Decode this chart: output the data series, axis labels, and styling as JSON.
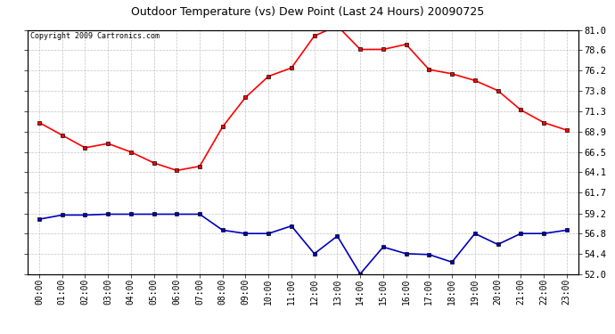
{
  "title": "Outdoor Temperature (vs) Dew Point (Last 24 Hours) 20090725",
  "copyright": "Copyright 2009 Cartronics.com",
  "x_labels": [
    "00:00",
    "01:00",
    "02:00",
    "03:00",
    "04:00",
    "05:00",
    "06:00",
    "07:00",
    "08:00",
    "09:00",
    "10:00",
    "11:00",
    "12:00",
    "13:00",
    "14:00",
    "15:00",
    "16:00",
    "17:00",
    "18:00",
    "19:00",
    "20:00",
    "21:00",
    "22:00",
    "23:00"
  ],
  "temp_data": [
    70.0,
    68.5,
    67.0,
    67.5,
    66.5,
    65.2,
    64.3,
    64.8,
    69.5,
    73.0,
    75.5,
    76.5,
    80.3,
    81.5,
    78.7,
    78.7,
    79.3,
    76.3,
    75.8,
    75.0,
    73.8,
    71.5,
    70.0,
    69.1
  ],
  "dew_data": [
    58.5,
    59.0,
    59.0,
    59.1,
    59.1,
    59.1,
    59.1,
    59.1,
    57.2,
    56.8,
    56.8,
    57.7,
    54.4,
    56.5,
    52.0,
    55.2,
    54.4,
    54.3,
    53.4,
    56.8,
    55.5,
    56.8,
    56.8,
    57.2
  ],
  "temp_color": "#ff0000",
  "dew_color": "#0000bb",
  "bg_color": "#ffffff",
  "grid_color": "#bbbbbb",
  "ylim": [
    52.0,
    81.0
  ],
  "yticks": [
    52.0,
    54.4,
    56.8,
    59.2,
    61.7,
    64.1,
    66.5,
    68.9,
    71.3,
    73.8,
    76.2,
    78.6,
    81.0
  ],
  "title_fontsize": 9,
  "copyright_fontsize": 6,
  "tick_fontsize": 7,
  "ytick_fontsize": 7.5,
  "marker_size": 3,
  "line_width": 1.2
}
